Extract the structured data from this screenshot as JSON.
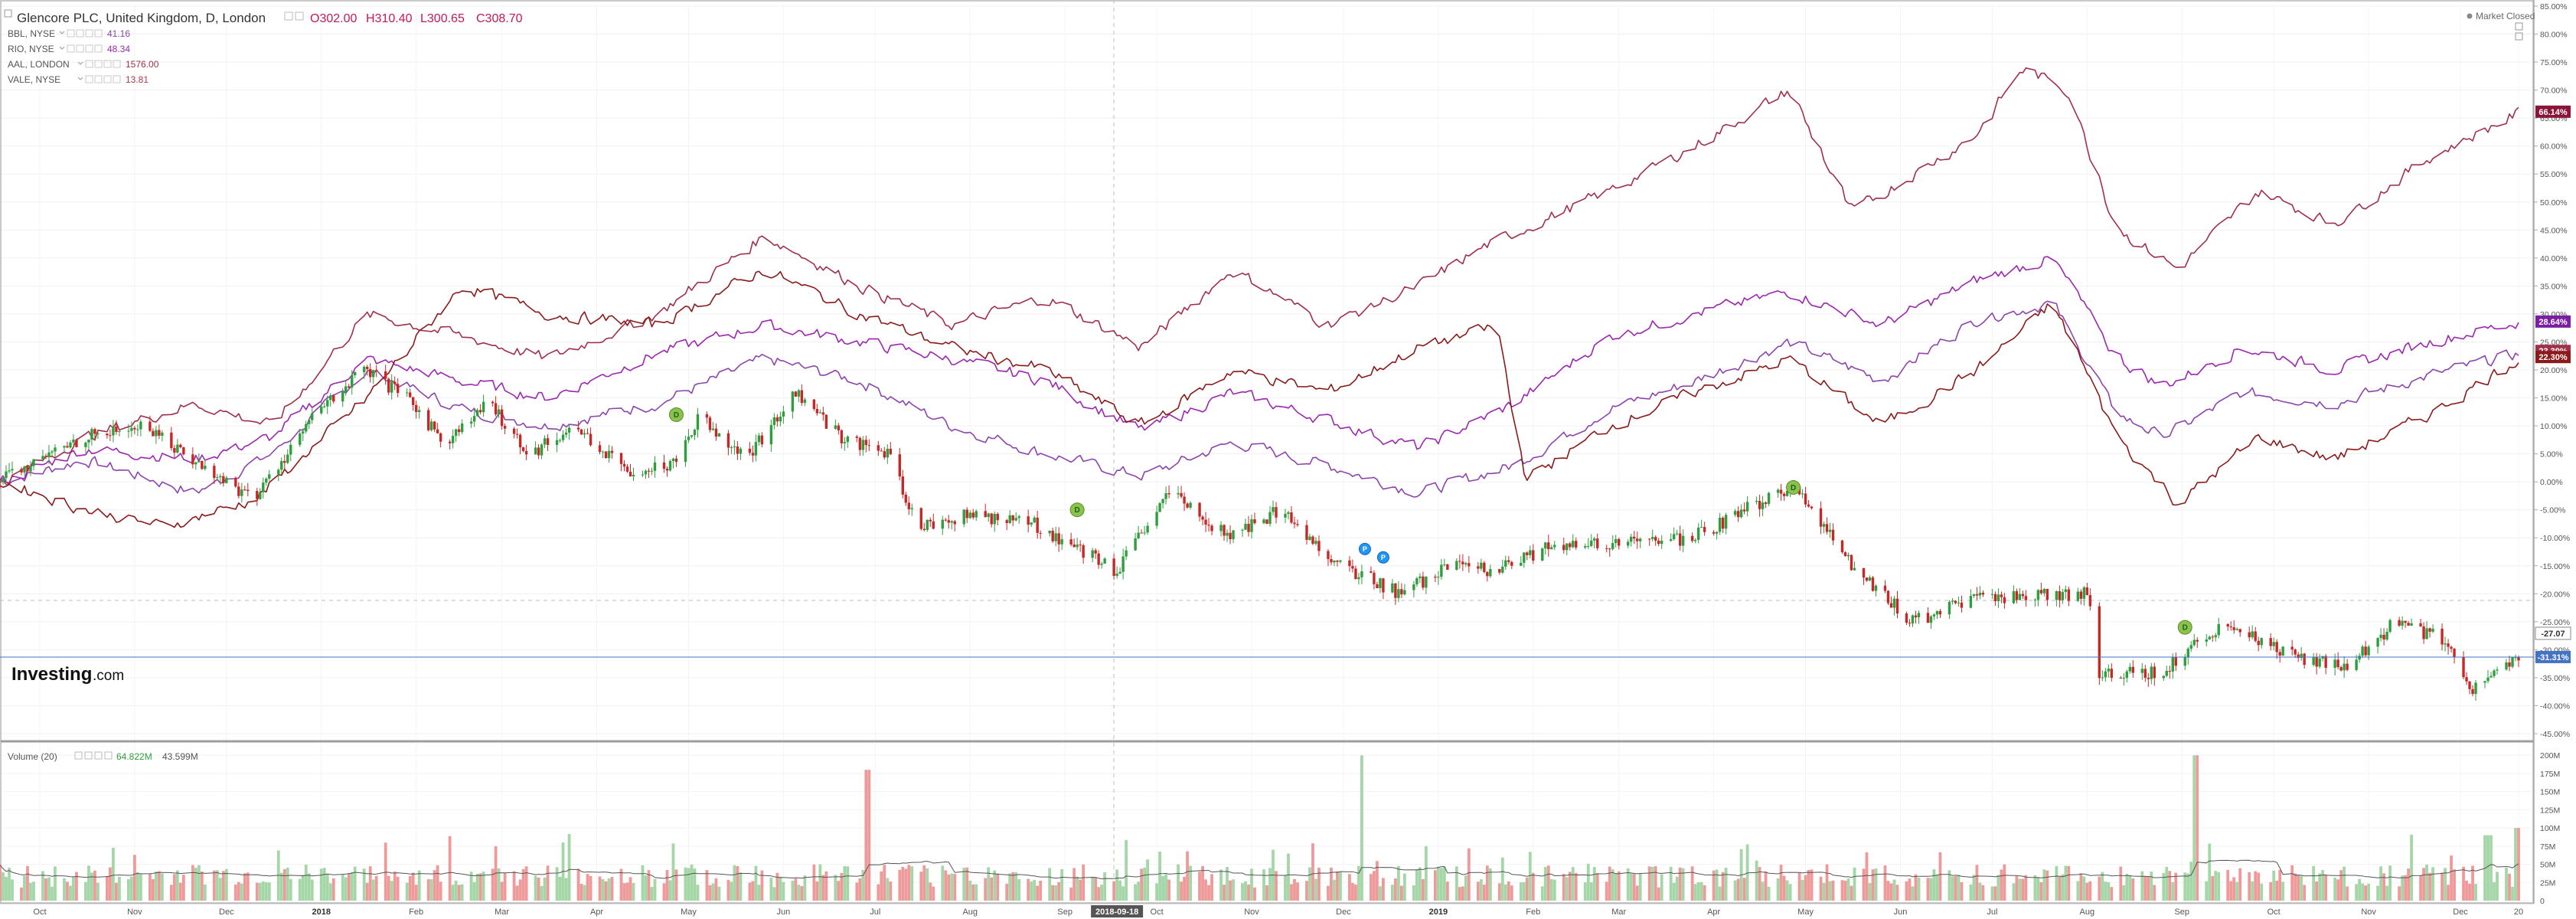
{
  "header": {
    "title": "Glencore PLC, United Kingdom, D, London",
    "open": "O302.00",
    "high": "H310.40",
    "low": "L300.65",
    "close": "C308.70"
  },
  "status": "Market Closed",
  "brand": {
    "name": "Investing",
    "suffix": ".com"
  },
  "legend": [
    {
      "name": "BBL, NYSE",
      "value": "41.16",
      "color": "#8e44ad"
    },
    {
      "name": "RIO, NYSE",
      "value": "48.34",
      "color": "#9c27b0"
    },
    {
      "name": "AAL, LONDON",
      "value": "1576.00",
      "color": "#a0304a"
    },
    {
      "name": "VALE, NYSE",
      "value": "13.81",
      "color": "#b03a4a"
    }
  ],
  "volume_legend": {
    "label": "Volume (20)",
    "value1": "64.822M",
    "value2": "43.599M"
  },
  "colors": {
    "up": "#2e9e3e",
    "down": "#c62828",
    "vol_up": "#a5d6a7",
    "vol_down": "#ef9a9a"
  },
  "chart_data": {
    "type": "line",
    "y_axis": {
      "unit": "%",
      "range": [
        -45,
        85
      ],
      "ticks": [
        "85.00%",
        "80.00%",
        "75.00%",
        "70.00%",
        "65.00%",
        "60.00%",
        "55.00%",
        "50.00%",
        "45.00%",
        "40.00%",
        "35.00%",
        "30.00%",
        "25.00%",
        "20.00%",
        "15.00%",
        "10.00%",
        "5.00%",
        "0.00%",
        "-5.00%",
        "-10.00%",
        "-15.00%",
        "-20.00%",
        "-25.00%",
        "-30.00%",
        "-35.00%",
        "-40.00%",
        "-45.00%"
      ]
    },
    "x_axis": {
      "labels": [
        "Oct",
        "Nov",
        "Dec",
        "2018",
        "Feb",
        "Mar",
        "Apr",
        "May",
        "Jun",
        "Jul",
        "Aug",
        "Sep",
        "2018-09-18",
        "Oct",
        "Nov",
        "Dec",
        "2019",
        "Feb",
        "Mar",
        "Apr",
        "May",
        "Jun",
        "Jul",
        "Aug",
        "Sep",
        "Oct",
        "Nov",
        "Dec",
        "20"
      ],
      "bold": [
        "2018",
        "2019"
      ],
      "highlight": "2018-09-18",
      "range": [
        "2017-09-18",
        "2019-12-20"
      ]
    },
    "price_axis_badges": [
      {
        "value": "66.14%",
        "color": "#8b1538"
      },
      {
        "value": "28.64%",
        "color": "#7b1fa2"
      },
      {
        "value": "23.39%",
        "color": "#a0304a"
      },
      {
        "value": "22.30%",
        "color": "#8b1a1a"
      },
      {
        "value": "-27.07",
        "color": "#ffffff"
      },
      {
        "value": "-31.31%",
        "color": "#4472c4"
      }
    ],
    "candle_series_name": "Glencore PLC",
    "candle_points": [
      {
        "x": "2017-09-18",
        "y": 0
      },
      {
        "x": "2017-10-15",
        "y": 8
      },
      {
        "x": "2017-11-05",
        "y": 10
      },
      {
        "x": "2017-11-25",
        "y": 2
      },
      {
        "x": "2017-12-10",
        "y": -3
      },
      {
        "x": "2017-12-30",
        "y": 12
      },
      {
        "x": "2018-01-15",
        "y": 20
      },
      {
        "x": "2018-01-31",
        "y": 14
      },
      {
        "x": "2018-02-10",
        "y": 7
      },
      {
        "x": "2018-02-25",
        "y": 14
      },
      {
        "x": "2018-03-10",
        "y": 5
      },
      {
        "x": "2018-03-25",
        "y": 10
      },
      {
        "x": "2018-04-10",
        "y": 2
      },
      {
        "x": "2018-04-25",
        "y": 3
      },
      {
        "x": "2018-05-05",
        "y": 12
      },
      {
        "x": "2018-05-20",
        "y": 4
      },
      {
        "x": "2018-06-05",
        "y": 16
      },
      {
        "x": "2018-06-20",
        "y": 8
      },
      {
        "x": "2018-07-05",
        "y": 5
      },
      {
        "x": "2018-07-15",
        "y": -8
      },
      {
        "x": "2018-08-01",
        "y": -6
      },
      {
        "x": "2018-08-20",
        "y": -7
      },
      {
        "x": "2018-09-18",
        "y": -16
      },
      {
        "x": "2018-10-05",
        "y": -2
      },
      {
        "x": "2018-10-25",
        "y": -10
      },
      {
        "x": "2018-11-10",
        "y": -5
      },
      {
        "x": "2018-11-30",
        "y": -15
      },
      {
        "x": "2018-12-20",
        "y": -20
      },
      {
        "x": "2019-01-05",
        "y": -15
      },
      {
        "x": "2019-01-20",
        "y": -16
      },
      {
        "x": "2019-02-05",
        "y": -12
      },
      {
        "x": "2019-03-01",
        "y": -11
      },
      {
        "x": "2019-03-25",
        "y": -10
      },
      {
        "x": "2019-04-15",
        "y": -4
      },
      {
        "x": "2019-04-28",
        "y": -1
      },
      {
        "x": "2019-05-15",
        "y": -14
      },
      {
        "x": "2019-06-05",
        "y": -25
      },
      {
        "x": "2019-06-25",
        "y": -21
      },
      {
        "x": "2019-07-15",
        "y": -20
      },
      {
        "x": "2019-08-01",
        "y": -20
      },
      {
        "x": "2019-08-05",
        "y": -34
      },
      {
        "x": "2019-08-25",
        "y": -34
      },
      {
        "x": "2019-09-15",
        "y": -25
      },
      {
        "x": "2019-10-05",
        "y": -31
      },
      {
        "x": "2019-10-25",
        "y": -33
      },
      {
        "x": "2019-11-10",
        "y": -25
      },
      {
        "x": "2019-11-25",
        "y": -28
      },
      {
        "x": "2019-12-05",
        "y": -37
      },
      {
        "x": "2019-12-20",
        "y": -31
      }
    ],
    "series": [
      {
        "name": "BBL, NYSE",
        "color": "#8e44ad",
        "points": [
          {
            "x": "2017-09-18",
            "y": 0
          },
          {
            "x": "2017-10-15",
            "y": 4
          },
          {
            "x": "2017-11-20",
            "y": -2
          },
          {
            "x": "2017-12-15",
            "y": 5
          },
          {
            "x": "2018-01-15",
            "y": 20
          },
          {
            "x": "2018-02-15",
            "y": 13
          },
          {
            "x": "2018-03-15",
            "y": 10
          },
          {
            "x": "2018-04-20",
            "y": 14
          },
          {
            "x": "2018-05-25",
            "y": 22
          },
          {
            "x": "2018-06-25",
            "y": 18
          },
          {
            "x": "2018-07-25",
            "y": 10
          },
          {
            "x": "2018-08-25",
            "y": 5
          },
          {
            "x": "2018-09-25",
            "y": 1
          },
          {
            "x": "2018-10-25",
            "y": 7
          },
          {
            "x": "2018-11-25",
            "y": 3
          },
          {
            "x": "2018-12-25",
            "y": -2
          },
          {
            "x": "2019-01-25",
            "y": 3
          },
          {
            "x": "2019-02-25",
            "y": 13
          },
          {
            "x": "2019-03-25",
            "y": 18
          },
          {
            "x": "2019-04-25",
            "y": 25
          },
          {
            "x": "2019-05-25",
            "y": 18
          },
          {
            "x": "2019-06-25",
            "y": 29
          },
          {
            "x": "2019-07-20",
            "y": 32
          },
          {
            "x": "2019-08-10",
            "y": 12
          },
          {
            "x": "2019-08-25",
            "y": 8
          },
          {
            "x": "2019-09-20",
            "y": 16
          },
          {
            "x": "2019-10-20",
            "y": 14
          },
          {
            "x": "2019-11-20",
            "y": 19
          },
          {
            "x": "2019-12-20",
            "y": 23
          }
        ]
      },
      {
        "name": "RIO, NYSE",
        "color": "#9c27b0",
        "points": [
          {
            "x": "2017-09-18",
            "y": 0
          },
          {
            "x": "2017-10-15",
            "y": 6
          },
          {
            "x": "2017-11-20",
            "y": 4
          },
          {
            "x": "2017-12-15",
            "y": 8
          },
          {
            "x": "2018-01-15",
            "y": 22
          },
          {
            "x": "2018-02-15",
            "y": 18
          },
          {
            "x": "2018-03-15",
            "y": 15
          },
          {
            "x": "2018-04-20",
            "y": 23
          },
          {
            "x": "2018-05-25",
            "y": 28
          },
          {
            "x": "2018-06-25",
            "y": 25
          },
          {
            "x": "2018-07-25",
            "y": 22
          },
          {
            "x": "2018-08-25",
            "y": 18
          },
          {
            "x": "2018-09-25",
            "y": 9
          },
          {
            "x": "2018-10-25",
            "y": 16
          },
          {
            "x": "2018-11-25",
            "y": 11
          },
          {
            "x": "2018-12-25",
            "y": 6
          },
          {
            "x": "2019-01-25",
            "y": 14
          },
          {
            "x": "2019-02-25",
            "y": 26
          },
          {
            "x": "2019-03-25",
            "y": 30
          },
          {
            "x": "2019-04-25",
            "y": 34
          },
          {
            "x": "2019-05-25",
            "y": 28
          },
          {
            "x": "2019-06-25",
            "y": 36
          },
          {
            "x": "2019-07-20",
            "y": 40
          },
          {
            "x": "2019-08-10",
            "y": 22
          },
          {
            "x": "2019-08-25",
            "y": 17
          },
          {
            "x": "2019-09-20",
            "y": 24
          },
          {
            "x": "2019-10-20",
            "y": 20
          },
          {
            "x": "2019-11-20",
            "y": 25
          },
          {
            "x": "2019-12-20",
            "y": 28.64
          }
        ]
      },
      {
        "name": "AAL, LONDON",
        "color": "#a0304a",
        "points": [
          {
            "x": "2017-09-18",
            "y": 0
          },
          {
            "x": "2017-10-15",
            "y": 8
          },
          {
            "x": "2017-11-20",
            "y": 14
          },
          {
            "x": "2017-12-15",
            "y": 10
          },
          {
            "x": "2018-01-15",
            "y": 30
          },
          {
            "x": "2018-02-15",
            "y": 26
          },
          {
            "x": "2018-03-15",
            "y": 22
          },
          {
            "x": "2018-04-20",
            "y": 30
          },
          {
            "x": "2018-05-25",
            "y": 44
          },
          {
            "x": "2018-06-25",
            "y": 35
          },
          {
            "x": "2018-07-25",
            "y": 28
          },
          {
            "x": "2018-08-25",
            "y": 33
          },
          {
            "x": "2018-09-25",
            "y": 24
          },
          {
            "x": "2018-10-25",
            "y": 38
          },
          {
            "x": "2018-11-25",
            "y": 28
          },
          {
            "x": "2018-12-25",
            "y": 35
          },
          {
            "x": "2019-01-15",
            "y": 42
          },
          {
            "x": "2019-02-25",
            "y": 52
          },
          {
            "x": "2019-03-25",
            "y": 60
          },
          {
            "x": "2019-04-25",
            "y": 70
          },
          {
            "x": "2019-05-15",
            "y": 48
          },
          {
            "x": "2019-06-25",
            "y": 62
          },
          {
            "x": "2019-07-10",
            "y": 74
          },
          {
            "x": "2019-07-25",
            "y": 70
          },
          {
            "x": "2019-08-10",
            "y": 45
          },
          {
            "x": "2019-08-30",
            "y": 38
          },
          {
            "x": "2019-09-25",
            "y": 52
          },
          {
            "x": "2019-10-20",
            "y": 46
          },
          {
            "x": "2019-11-20",
            "y": 58
          },
          {
            "x": "2019-12-20",
            "y": 66.14
          }
        ]
      },
      {
        "name": "VALE, NYSE",
        "color": "#8b1a1a",
        "points": [
          {
            "x": "2017-09-18",
            "y": 0
          },
          {
            "x": "2017-10-15",
            "y": -5
          },
          {
            "x": "2017-11-10",
            "y": -8
          },
          {
            "x": "2017-12-10",
            "y": -3
          },
          {
            "x": "2018-01-15",
            "y": 15
          },
          {
            "x": "2018-02-15",
            "y": 35
          },
          {
            "x": "2018-03-15",
            "y": 30
          },
          {
            "x": "2018-04-20",
            "y": 28
          },
          {
            "x": "2018-05-25",
            "y": 38
          },
          {
            "x": "2018-06-25",
            "y": 30
          },
          {
            "x": "2018-07-25",
            "y": 24
          },
          {
            "x": "2018-08-25",
            "y": 20
          },
          {
            "x": "2018-09-25",
            "y": 10
          },
          {
            "x": "2018-10-25",
            "y": 20
          },
          {
            "x": "2018-11-25",
            "y": 16
          },
          {
            "x": "2018-12-25",
            "y": 24
          },
          {
            "x": "2019-01-20",
            "y": 28
          },
          {
            "x": "2019-01-28",
            "y": 0
          },
          {
            "x": "2019-02-25",
            "y": 10
          },
          {
            "x": "2019-03-25",
            "y": 16
          },
          {
            "x": "2019-04-25",
            "y": 22
          },
          {
            "x": "2019-05-25",
            "y": 10
          },
          {
            "x": "2019-06-25",
            "y": 20
          },
          {
            "x": "2019-07-20",
            "y": 32
          },
          {
            "x": "2019-08-10",
            "y": 8
          },
          {
            "x": "2019-08-30",
            "y": -4
          },
          {
            "x": "2019-09-25",
            "y": 8
          },
          {
            "x": "2019-10-20",
            "y": 4
          },
          {
            "x": "2019-11-20",
            "y": 12
          },
          {
            "x": "2019-12-20",
            "y": 22.3
          }
        ]
      }
    ],
    "events": [
      {
        "x": "2018-04-27",
        "y": 12,
        "label": "D",
        "kind": "dividend"
      },
      {
        "x": "2018-09-05",
        "y": -5,
        "label": "D",
        "kind": "dividend"
      },
      {
        "x": "2018-12-08",
        "y": -12,
        "label": "P",
        "kind": "split"
      },
      {
        "x": "2018-12-14",
        "y": -13.5,
        "label": "P",
        "kind": "split"
      },
      {
        "x": "2019-04-27",
        "y": -1,
        "label": "D",
        "kind": "dividend"
      },
      {
        "x": "2019-09-02",
        "y": -26,
        "label": "D",
        "kind": "dividend"
      }
    ],
    "volume_axis": {
      "range": [
        0,
        215
      ],
      "ticks": [
        "200M",
        "175M",
        "150M",
        "125M",
        "100M",
        "75M",
        "50M",
        "25M",
        "0"
      ]
    },
    "volume_spikes": [
      {
        "x": "2018-06-29",
        "v": 180
      },
      {
        "x": "2018-12-08",
        "v": 200
      },
      {
        "x": "2019-09-06",
        "v": 200
      },
      {
        "x": "2019-12-10",
        "v": 90
      },
      {
        "x": "2019-12-20",
        "v": 100
      }
    ],
    "grid": true,
    "legend_position": "top-left"
  }
}
